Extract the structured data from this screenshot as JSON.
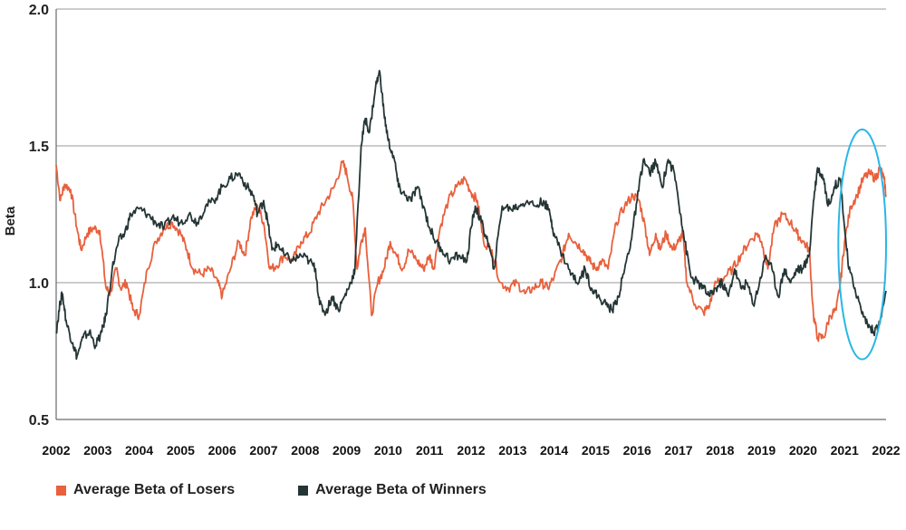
{
  "chart_data": {
    "type": "line",
    "title": "",
    "xlabel": "",
    "ylabel": "Beta",
    "xlim": [
      2002,
      2022
    ],
    "ylim": [
      0.5,
      2.0
    ],
    "y_ticks": [
      "0.5",
      "1.0",
      "1.5",
      "2.0"
    ],
    "x_ticks": [
      "2002",
      "2003",
      "2004",
      "2005",
      "2006",
      "2007",
      "2008",
      "2009",
      "2010",
      "2011",
      "2012",
      "2013",
      "2014",
      "2015",
      "2016",
      "2017",
      "2018",
      "2019",
      "2020",
      "2021",
      "2022"
    ],
    "grid": "horizontal",
    "legend_position": "bottom-left",
    "highlight": {
      "shape": "ellipse",
      "color": "#29b6e6",
      "x_range": [
        2020.85,
        2022.0
      ],
      "y_range": [
        0.72,
        1.56
      ]
    },
    "series": [
      {
        "name": "Average Beta of Losers",
        "color": "#e8603c",
        "points": [
          [
            2002.0,
            1.43
          ],
          [
            2002.1,
            1.3
          ],
          [
            2002.2,
            1.36
          ],
          [
            2002.35,
            1.34
          ],
          [
            2002.5,
            1.2
          ],
          [
            2002.6,
            1.12
          ],
          [
            2002.75,
            1.18
          ],
          [
            2002.9,
            1.2
          ],
          [
            2003.05,
            1.19
          ],
          [
            2003.2,
            0.98
          ],
          [
            2003.3,
            0.96
          ],
          [
            2003.45,
            1.05
          ],
          [
            2003.55,
            0.98
          ],
          [
            2003.7,
            1.0
          ],
          [
            2003.85,
            0.9
          ],
          [
            2004.0,
            0.88
          ],
          [
            2004.2,
            1.05
          ],
          [
            2004.4,
            1.15
          ],
          [
            2004.6,
            1.2
          ],
          [
            2004.8,
            1.22
          ],
          [
            2005.0,
            1.18
          ],
          [
            2005.15,
            1.12
          ],
          [
            2005.3,
            1.05
          ],
          [
            2005.5,
            1.03
          ],
          [
            2005.7,
            1.05
          ],
          [
            2005.9,
            1.0
          ],
          [
            2006.0,
            0.95
          ],
          [
            2006.2,
            1.05
          ],
          [
            2006.4,
            1.15
          ],
          [
            2006.55,
            1.1
          ],
          [
            2006.7,
            1.24
          ],
          [
            2006.85,
            1.28
          ],
          [
            2007.0,
            1.22
          ],
          [
            2007.15,
            1.05
          ],
          [
            2007.3,
            1.06
          ],
          [
            2007.5,
            1.1
          ],
          [
            2007.7,
            1.08
          ],
          [
            2007.9,
            1.15
          ],
          [
            2008.1,
            1.18
          ],
          [
            2008.3,
            1.25
          ],
          [
            2008.5,
            1.3
          ],
          [
            2008.7,
            1.35
          ],
          [
            2008.9,
            1.44
          ],
          [
            2009.0,
            1.4
          ],
          [
            2009.15,
            1.3
          ],
          [
            2009.25,
            1.05
          ],
          [
            2009.35,
            1.15
          ],
          [
            2009.45,
            1.2
          ],
          [
            2009.6,
            0.88
          ],
          [
            2009.75,
            1.0
          ],
          [
            2009.9,
            1.05
          ],
          [
            2010.05,
            1.15
          ],
          [
            2010.2,
            1.1
          ],
          [
            2010.35,
            1.05
          ],
          [
            2010.5,
            1.12
          ],
          [
            2010.7,
            1.08
          ],
          [
            2010.85,
            1.05
          ],
          [
            2011.0,
            1.1
          ],
          [
            2011.1,
            1.05
          ],
          [
            2011.25,
            1.2
          ],
          [
            2011.45,
            1.3
          ],
          [
            2011.65,
            1.35
          ],
          [
            2011.85,
            1.38
          ],
          [
            2012.0,
            1.33
          ],
          [
            2012.15,
            1.3
          ],
          [
            2012.3,
            1.15
          ],
          [
            2012.5,
            1.12
          ],
          [
            2012.7,
            1.0
          ],
          [
            2012.9,
            0.98
          ],
          [
            2013.1,
            1.0
          ],
          [
            2013.3,
            0.96
          ],
          [
            2013.5,
            0.98
          ],
          [
            2013.7,
            1.0
          ],
          [
            2013.85,
            0.98
          ],
          [
            2014.0,
            1.02
          ],
          [
            2014.2,
            1.1
          ],
          [
            2014.35,
            1.18
          ],
          [
            2014.5,
            1.15
          ],
          [
            2014.7,
            1.12
          ],
          [
            2014.85,
            1.08
          ],
          [
            2015.0,
            1.05
          ],
          [
            2015.15,
            1.08
          ],
          [
            2015.3,
            1.05
          ],
          [
            2015.5,
            1.22
          ],
          [
            2015.7,
            1.28
          ],
          [
            2015.9,
            1.32
          ],
          [
            2016.05,
            1.3
          ],
          [
            2016.2,
            1.2
          ],
          [
            2016.3,
            1.1
          ],
          [
            2016.45,
            1.18
          ],
          [
            2016.55,
            1.12
          ],
          [
            2016.7,
            1.18
          ],
          [
            2016.85,
            1.12
          ],
          [
            2017.0,
            1.15
          ],
          [
            2017.1,
            1.18
          ],
          [
            2017.2,
            1.0
          ],
          [
            2017.4,
            0.92
          ],
          [
            2017.6,
            0.89
          ],
          [
            2017.75,
            0.92
          ],
          [
            2017.9,
            1.0
          ],
          [
            2018.1,
            1.02
          ],
          [
            2018.3,
            1.05
          ],
          [
            2018.5,
            1.1
          ],
          [
            2018.7,
            1.15
          ],
          [
            2018.9,
            1.18
          ],
          [
            2019.0,
            1.15
          ],
          [
            2019.15,
            1.05
          ],
          [
            2019.3,
            1.2
          ],
          [
            2019.5,
            1.25
          ],
          [
            2019.7,
            1.22
          ],
          [
            2019.85,
            1.18
          ],
          [
            2020.0,
            1.15
          ],
          [
            2020.15,
            1.12
          ],
          [
            2020.25,
            0.88
          ],
          [
            2020.35,
            0.8
          ],
          [
            2020.5,
            0.8
          ],
          [
            2020.65,
            0.88
          ],
          [
            2020.8,
            0.9
          ],
          [
            2020.9,
            1.0
          ],
          [
            2021.0,
            1.15
          ],
          [
            2021.15,
            1.28
          ],
          [
            2021.3,
            1.32
          ],
          [
            2021.45,
            1.38
          ],
          [
            2021.6,
            1.4
          ],
          [
            2021.75,
            1.38
          ],
          [
            2021.85,
            1.42
          ],
          [
            2021.95,
            1.38
          ],
          [
            2022.0,
            1.32
          ]
        ]
      },
      {
        "name": "Average Beta of Winners",
        "color": "#253535",
        "points": [
          [
            2002.0,
            0.82
          ],
          [
            2002.1,
            0.93
          ],
          [
            2002.15,
            0.96
          ],
          [
            2002.25,
            0.85
          ],
          [
            2002.4,
            0.78
          ],
          [
            2002.5,
            0.73
          ],
          [
            2002.65,
            0.8
          ],
          [
            2002.8,
            0.82
          ],
          [
            2002.95,
            0.77
          ],
          [
            2003.1,
            0.82
          ],
          [
            2003.2,
            0.88
          ],
          [
            2003.35,
            1.05
          ],
          [
            2003.5,
            1.15
          ],
          [
            2003.65,
            1.18
          ],
          [
            2003.8,
            1.25
          ],
          [
            2004.0,
            1.27
          ],
          [
            2004.2,
            1.25
          ],
          [
            2004.4,
            1.22
          ],
          [
            2004.6,
            1.2
          ],
          [
            2004.8,
            1.24
          ],
          [
            2005.0,
            1.22
          ],
          [
            2005.2,
            1.25
          ],
          [
            2005.4,
            1.22
          ],
          [
            2005.6,
            1.28
          ],
          [
            2005.8,
            1.3
          ],
          [
            2006.0,
            1.35
          ],
          [
            2006.2,
            1.38
          ],
          [
            2006.4,
            1.4
          ],
          [
            2006.6,
            1.35
          ],
          [
            2006.75,
            1.32
          ],
          [
            2006.85,
            1.25
          ],
          [
            2007.0,
            1.3
          ],
          [
            2007.1,
            1.22
          ],
          [
            2007.2,
            1.12
          ],
          [
            2007.35,
            1.14
          ],
          [
            2007.5,
            1.1
          ],
          [
            2007.7,
            1.08
          ],
          [
            2007.9,
            1.1
          ],
          [
            2008.1,
            1.08
          ],
          [
            2008.25,
            1.05
          ],
          [
            2008.35,
            0.92
          ],
          [
            2008.5,
            0.89
          ],
          [
            2008.65,
            0.95
          ],
          [
            2008.8,
            0.9
          ],
          [
            2008.95,
            0.95
          ],
          [
            2009.1,
            1.0
          ],
          [
            2009.2,
            1.05
          ],
          [
            2009.35,
            1.5
          ],
          [
            2009.45,
            1.6
          ],
          [
            2009.55,
            1.55
          ],
          [
            2009.7,
            1.72
          ],
          [
            2009.8,
            1.77
          ],
          [
            2009.9,
            1.62
          ],
          [
            2010.0,
            1.52
          ],
          [
            2010.15,
            1.45
          ],
          [
            2010.25,
            1.35
          ],
          [
            2010.4,
            1.32
          ],
          [
            2010.55,
            1.3
          ],
          [
            2010.7,
            1.35
          ],
          [
            2010.85,
            1.28
          ],
          [
            2011.0,
            1.2
          ],
          [
            2011.15,
            1.15
          ],
          [
            2011.3,
            1.12
          ],
          [
            2011.5,
            1.08
          ],
          [
            2011.7,
            1.1
          ],
          [
            2011.9,
            1.08
          ],
          [
            2012.0,
            1.2
          ],
          [
            2012.1,
            1.28
          ],
          [
            2012.25,
            1.22
          ],
          [
            2012.4,
            1.15
          ],
          [
            2012.55,
            1.05
          ],
          [
            2012.75,
            1.28
          ],
          [
            2012.95,
            1.27
          ],
          [
            2013.15,
            1.28
          ],
          [
            2013.35,
            1.3
          ],
          [
            2013.55,
            1.28
          ],
          [
            2013.75,
            1.3
          ],
          [
            2013.9,
            1.25
          ],
          [
            2014.0,
            1.18
          ],
          [
            2014.15,
            1.12
          ],
          [
            2014.35,
            1.05
          ],
          [
            2014.55,
            1.0
          ],
          [
            2014.75,
            1.05
          ],
          [
            2014.9,
            0.98
          ],
          [
            2015.05,
            0.95
          ],
          [
            2015.25,
            0.92
          ],
          [
            2015.4,
            0.9
          ],
          [
            2015.55,
            0.95
          ],
          [
            2015.7,
            1.05
          ],
          [
            2015.85,
            1.15
          ],
          [
            2016.0,
            1.3
          ],
          [
            2016.15,
            1.45
          ],
          [
            2016.3,
            1.4
          ],
          [
            2016.45,
            1.44
          ],
          [
            2016.6,
            1.35
          ],
          [
            2016.75,
            1.45
          ],
          [
            2016.9,
            1.4
          ],
          [
            2017.05,
            1.25
          ],
          [
            2017.15,
            1.15
          ],
          [
            2017.3,
            1.02
          ],
          [
            2017.45,
            1.0
          ],
          [
            2017.6,
            0.98
          ],
          [
            2017.75,
            0.95
          ],
          [
            2017.9,
            0.98
          ],
          [
            2018.05,
            1.0
          ],
          [
            2018.2,
            0.95
          ],
          [
            2018.35,
            1.05
          ],
          [
            2018.5,
            0.98
          ],
          [
            2018.65,
            1.0
          ],
          [
            2018.8,
            0.92
          ],
          [
            2018.95,
            1.0
          ],
          [
            2019.1,
            1.1
          ],
          [
            2019.25,
            1.05
          ],
          [
            2019.4,
            0.95
          ],
          [
            2019.55,
            1.05
          ],
          [
            2019.7,
            1.0
          ],
          [
            2019.85,
            1.05
          ],
          [
            2020.0,
            1.05
          ],
          [
            2020.15,
            1.1
          ],
          [
            2020.25,
            1.3
          ],
          [
            2020.35,
            1.42
          ],
          [
            2020.5,
            1.38
          ],
          [
            2020.6,
            1.28
          ],
          [
            2020.75,
            1.35
          ],
          [
            2020.9,
            1.38
          ],
          [
            2021.0,
            1.2
          ],
          [
            2021.1,
            1.05
          ],
          [
            2021.25,
            0.98
          ],
          [
            2021.4,
            0.9
          ],
          [
            2021.55,
            0.85
          ],
          [
            2021.7,
            0.82
          ],
          [
            2021.85,
            0.85
          ],
          [
            2022.0,
            0.97
          ]
        ]
      }
    ]
  }
}
